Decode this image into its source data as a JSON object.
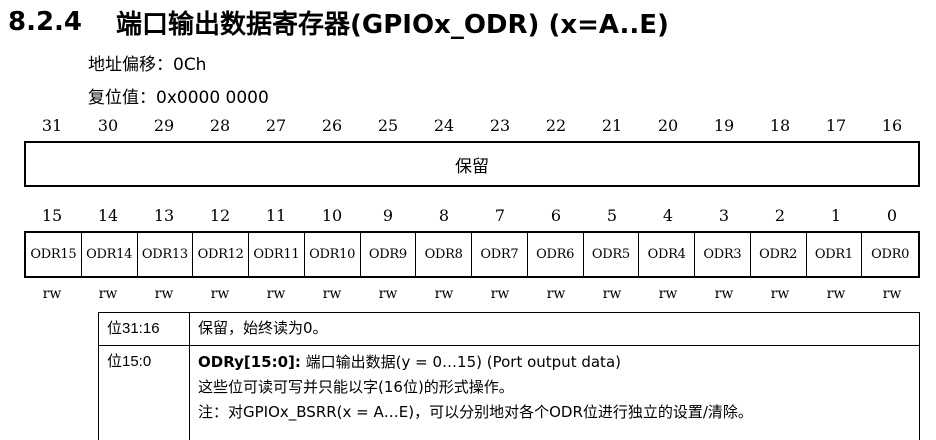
{
  "heading": {
    "number": "8.2.4",
    "title": "端口输出数据寄存器(GPIOx_ODR) (x=A..E)"
  },
  "offset": "地址偏移：0Ch",
  "reset": "复位值：0x0000 0000",
  "upper_bits": [
    "31",
    "30",
    "29",
    "28",
    "27",
    "26",
    "25",
    "24",
    "23",
    "22",
    "21",
    "20",
    "19",
    "18",
    "17",
    "16"
  ],
  "reserved_label": "保留",
  "lower_bits": [
    "15",
    "14",
    "13",
    "12",
    "11",
    "10",
    "9",
    "8",
    "7",
    "6",
    "5",
    "4",
    "3",
    "2",
    "1",
    "0"
  ],
  "fields": [
    "ODR15",
    "ODR14",
    "ODR13",
    "ODR12",
    "ODR11",
    "ODR10",
    "ODR9",
    "ODR8",
    "ODR7",
    "ODR6",
    "ODR5",
    "ODR4",
    "ODR3",
    "ODR2",
    "ODR1",
    "ODR0"
  ],
  "access": [
    "rw",
    "rw",
    "rw",
    "rw",
    "rw",
    "rw",
    "rw",
    "rw",
    "rw",
    "rw",
    "rw",
    "rw",
    "rw",
    "rw",
    "rw",
    "rw"
  ],
  "descriptions": [
    {
      "bits": "位31:16",
      "text": "保留，始终读为0。"
    },
    {
      "bits": "位15:0",
      "name": "ODRy[15:0]:",
      "text": " 端口输出数据(y = 0…15) (Port output data)",
      "line2": "这些位可读可写并只能以字(16位)的形式操作。",
      "line3": "注：对GPIOx_BSRR(x = A…E)，可以分别地对各个ODR位进行独立的设置/清除。"
    }
  ]
}
